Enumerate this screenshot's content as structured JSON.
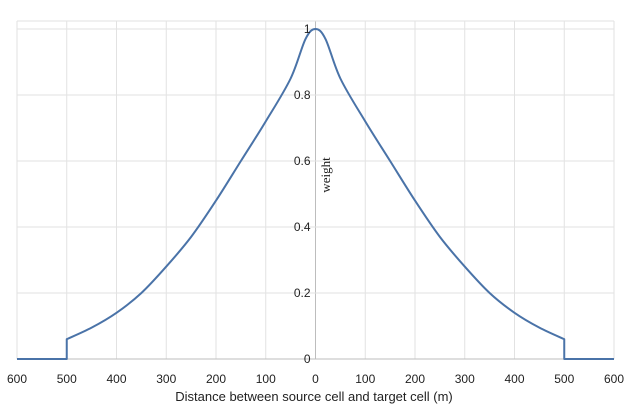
{
  "chart_data": {
    "type": "line",
    "xlabel": "Distance between source cell and target cell (m)",
    "ylabel": "weight",
    "x_range": [
      -600,
      600
    ],
    "ylim": [
      0,
      1
    ],
    "x_tick_values": [
      -600,
      -500,
      -400,
      -300,
      -200,
      -100,
      0,
      100,
      200,
      300,
      400,
      500,
      600
    ],
    "x_tick_labels": [
      "600",
      "500",
      "400",
      "300",
      "200",
      "100",
      "0",
      "100",
      "200",
      "300",
      "400",
      "500",
      "600"
    ],
    "y_ticks": [
      {
        "value": 0,
        "label": "0"
      },
      {
        "value": 0.2,
        "label": "0.2"
      },
      {
        "value": 0.4,
        "label": "0.4"
      },
      {
        "value": 0.6,
        "label": "0.6"
      },
      {
        "value": 0.8,
        "label": "0.8"
      },
      {
        "value": 1,
        "label": "1"
      }
    ],
    "grid": true,
    "series": [
      {
        "color": "#4a73a8",
        "points": [
          [
            -600,
            0
          ],
          [
            -500,
            0
          ],
          [
            -500,
            0.06
          ],
          [
            -450,
            0.095
          ],
          [
            -400,
            0.14
          ],
          [
            -350,
            0.2
          ],
          [
            -300,
            0.28
          ],
          [
            -250,
            0.37
          ],
          [
            -200,
            0.48
          ],
          [
            -150,
            0.6
          ],
          [
            -100,
            0.72
          ],
          [
            -50,
            0.85
          ],
          [
            -20,
            0.97
          ],
          [
            0,
            1
          ],
          [
            20,
            0.97
          ],
          [
            50,
            0.85
          ],
          [
            100,
            0.72
          ],
          [
            150,
            0.6
          ],
          [
            200,
            0.48
          ],
          [
            250,
            0.37
          ],
          [
            300,
            0.28
          ],
          [
            350,
            0.2
          ],
          [
            400,
            0.14
          ],
          [
            450,
            0.095
          ],
          [
            500,
            0.06
          ],
          [
            500,
            0
          ],
          [
            600,
            0
          ]
        ]
      }
    ]
  }
}
